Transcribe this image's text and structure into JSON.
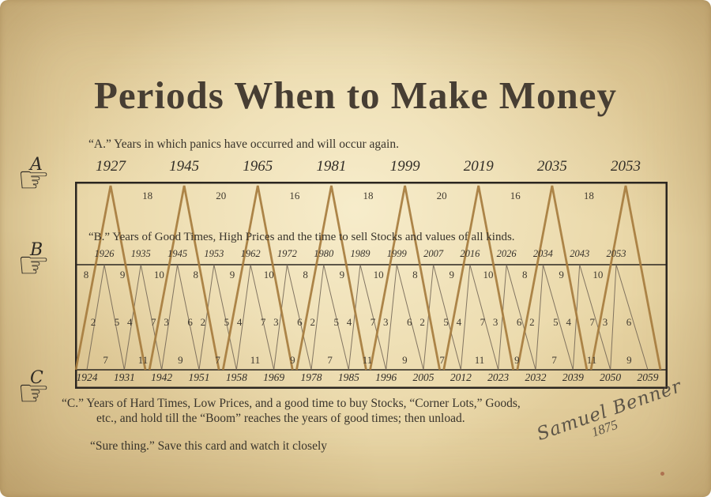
{
  "page": {
    "title": "Periods When to Make Money",
    "caption_a": "“A.” Years in which panics have occurred and will occur again.",
    "caption_b": "“B.” Years of Good Times, High Prices and the time to sell Stocks and values of all kinds.",
    "caption_c_line1": "“C.”   Years of Hard Times, Low Prices, and a good time to buy Stocks, “Corner Lots,” Goods,",
    "caption_c_line2": "etc., and hold till  the “Boom” reaches the years of good times; then unload.",
    "footer_note": "“Sure thing.” Save this card and watch it closely",
    "signature_name": "Samuel Benner",
    "signature_year": "1875",
    "markers": [
      "A",
      "B",
      "C"
    ],
    "icons": {
      "pointing_hand": "☞"
    }
  },
  "chart_data": {
    "type": "line",
    "title": "Periods When to Make Money (Benner cycle chart)",
    "legend_position": "none",
    "grid": false,
    "series_a": {
      "label": "Years in which panics have occurred and will occur again",
      "years": [
        1927,
        1945,
        1965,
        1981,
        1999,
        2019,
        2035,
        2053
      ],
      "intervals": [
        18,
        20,
        16,
        18,
        20,
        16,
        18
      ]
    },
    "series_b": {
      "label": "Years of Good Times, High Prices and the time to sell Stocks and values of all kinds",
      "years": [
        1926,
        1935,
        1945,
        1953,
        1962,
        1972,
        1980,
        1989,
        1999,
        2007,
        2016,
        2026,
        2034,
        2043,
        2053
      ],
      "intervals": [
        8,
        9,
        10,
        8,
        9,
        10,
        8,
        9,
        10,
        8,
        9,
        10,
        8,
        9,
        10
      ],
      "slope_pairs": [
        [
          2,
          5
        ],
        [
          4,
          7
        ],
        [
          3,
          6
        ],
        [
          2,
          5
        ],
        [
          4,
          7
        ],
        [
          3,
          6
        ],
        [
          2,
          5
        ],
        [
          4,
          7
        ],
        [
          3,
          6
        ],
        [
          2,
          5
        ],
        [
          4,
          7
        ],
        [
          3,
          6
        ],
        [
          2,
          5
        ],
        [
          4,
          7
        ],
        [
          3,
          6
        ]
      ]
    },
    "series_c": {
      "label": "Years of Hard Times, Low Prices, and a good time to buy Stocks, Corner Lots, Goods",
      "years": [
        1924,
        1931,
        1942,
        1951,
        1958,
        1969,
        1978,
        1985,
        1996,
        2005,
        2012,
        2023,
        2032,
        2039,
        2050,
        2059
      ],
      "intervals": [
        7,
        11,
        9,
        7,
        11,
        9,
        7,
        11,
        9,
        7,
        11,
        9,
        7,
        11,
        9
      ]
    },
    "colors": {
      "panic_line": "#a67c3e",
      "zigzag_line": "#6f6152",
      "frame": "#2b2620",
      "text": "#403a30",
      "paper": "#e8d5a4"
    }
  }
}
